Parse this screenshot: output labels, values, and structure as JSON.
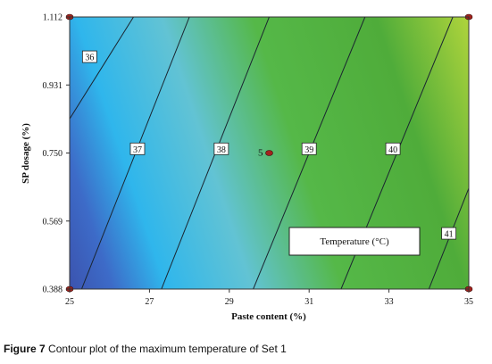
{
  "chart_data": {
    "type": "contour",
    "xlabel": "Paste content (%)",
    "ylabel": "SP dosage (%)",
    "xlim": [
      25,
      35
    ],
    "ylim": [
      0.388,
      1.112
    ],
    "x_ticks": [
      "25",
      "27",
      "29",
      "31",
      "33",
      "35"
    ],
    "y_ticks": [
      "0.388",
      "0.569",
      "0.750",
      "0.931",
      "1.112"
    ],
    "z_label": "Temperature (°C)",
    "contours": [
      {
        "level": 36,
        "label": "36",
        "points": [
          [
            24.7,
            0.79
          ],
          [
            26.6,
            1.112
          ]
        ],
        "label_at": [
          25.5,
          1.005
        ]
      },
      {
        "level": 37,
        "label": "37",
        "points": [
          [
            25.3,
            0.388
          ],
          [
            28.0,
            1.112
          ]
        ],
        "label_at": [
          26.7,
          0.76
        ]
      },
      {
        "level": 38,
        "label": "38",
        "points": [
          [
            27.3,
            0.388
          ],
          [
            30.0,
            1.112
          ]
        ],
        "label_at": [
          28.8,
          0.76
        ]
      },
      {
        "level": 39,
        "label": "39",
        "points": [
          [
            29.6,
            0.388
          ],
          [
            32.4,
            1.112
          ]
        ],
        "label_at": [
          31.0,
          0.76
        ]
      },
      {
        "level": 40,
        "label": "40",
        "points": [
          [
            31.8,
            0.388
          ],
          [
            34.6,
            1.112
          ]
        ],
        "label_at": [
          33.1,
          0.76
        ]
      },
      {
        "level": 41,
        "label": "41",
        "points": [
          [
            34.0,
            0.388
          ],
          [
            36.7,
            1.112
          ]
        ],
        "label_at": [
          34.5,
          0.535
        ]
      }
    ],
    "design_points": [
      {
        "x": 25,
        "y": 1.112,
        "label": ""
      },
      {
        "x": 35,
        "y": 1.112,
        "label": ""
      },
      {
        "x": 25,
        "y": 0.388,
        "label": ""
      },
      {
        "x": 35,
        "y": 0.388,
        "label": ""
      },
      {
        "x": 30,
        "y": 0.75,
        "label": "5"
      }
    ],
    "colors": {
      "low": "#3b4fa8",
      "mid": "#39b0e6",
      "high": "#c8dc3a"
    }
  },
  "caption": {
    "label": "Figure 7",
    "text": "Contour plot of the maximum temperature of Set 1"
  }
}
